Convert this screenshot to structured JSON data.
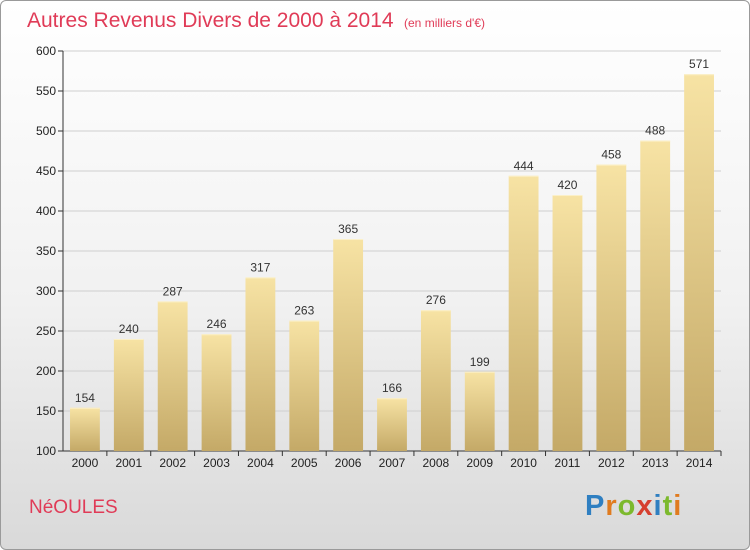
{
  "header": {
    "title": "Autres Revenus Divers de 2000 à 2014",
    "subtitle": "(en milliers d'€)"
  },
  "place_name": "NéOULES",
  "logo": {
    "text": "Proxiti",
    "letter_colors": [
      "#2f7fc1",
      "#e07b1f",
      "#7cb92d",
      "#d63f2f",
      "#2f7fc1",
      "#7cb92d",
      "#e07b1f"
    ]
  },
  "colors": {
    "bar_top": "#f7e3a4",
    "bar_bottom": "#c4a967",
    "grid": "#cfcfcf",
    "axis_text": "#222222",
    "title": "#e03b57"
  },
  "chart_data": {
    "type": "bar",
    "categories": [
      "2000",
      "2001",
      "2002",
      "2003",
      "2004",
      "2005",
      "2006",
      "2007",
      "2008",
      "2009",
      "2010",
      "2011",
      "2012",
      "2013",
      "2014"
    ],
    "values": [
      154,
      240,
      287,
      246,
      317,
      263,
      365,
      166,
      276,
      199,
      444,
      420,
      458,
      488,
      571
    ],
    "data_labels": [
      "154",
      "240",
      "287",
      "246",
      "317",
      "263",
      "365",
      "166",
      "276",
      "199",
      "444",
      "420",
      "458",
      "488",
      "571"
    ],
    "title": "Autres Revenus Divers de 2000 à 2014",
    "subtitle": "(en milliers d'€)",
    "xlabel": "",
    "ylabel": "",
    "ylim": [
      100,
      600
    ],
    "yticks": [
      100,
      150,
      200,
      250,
      300,
      350,
      400,
      450,
      500,
      550,
      600
    ],
    "ytick_labels": [
      "100",
      "150",
      "200",
      "250",
      "300",
      "350",
      "400",
      "450",
      "500",
      "550",
      "600"
    ],
    "grid": true
  }
}
